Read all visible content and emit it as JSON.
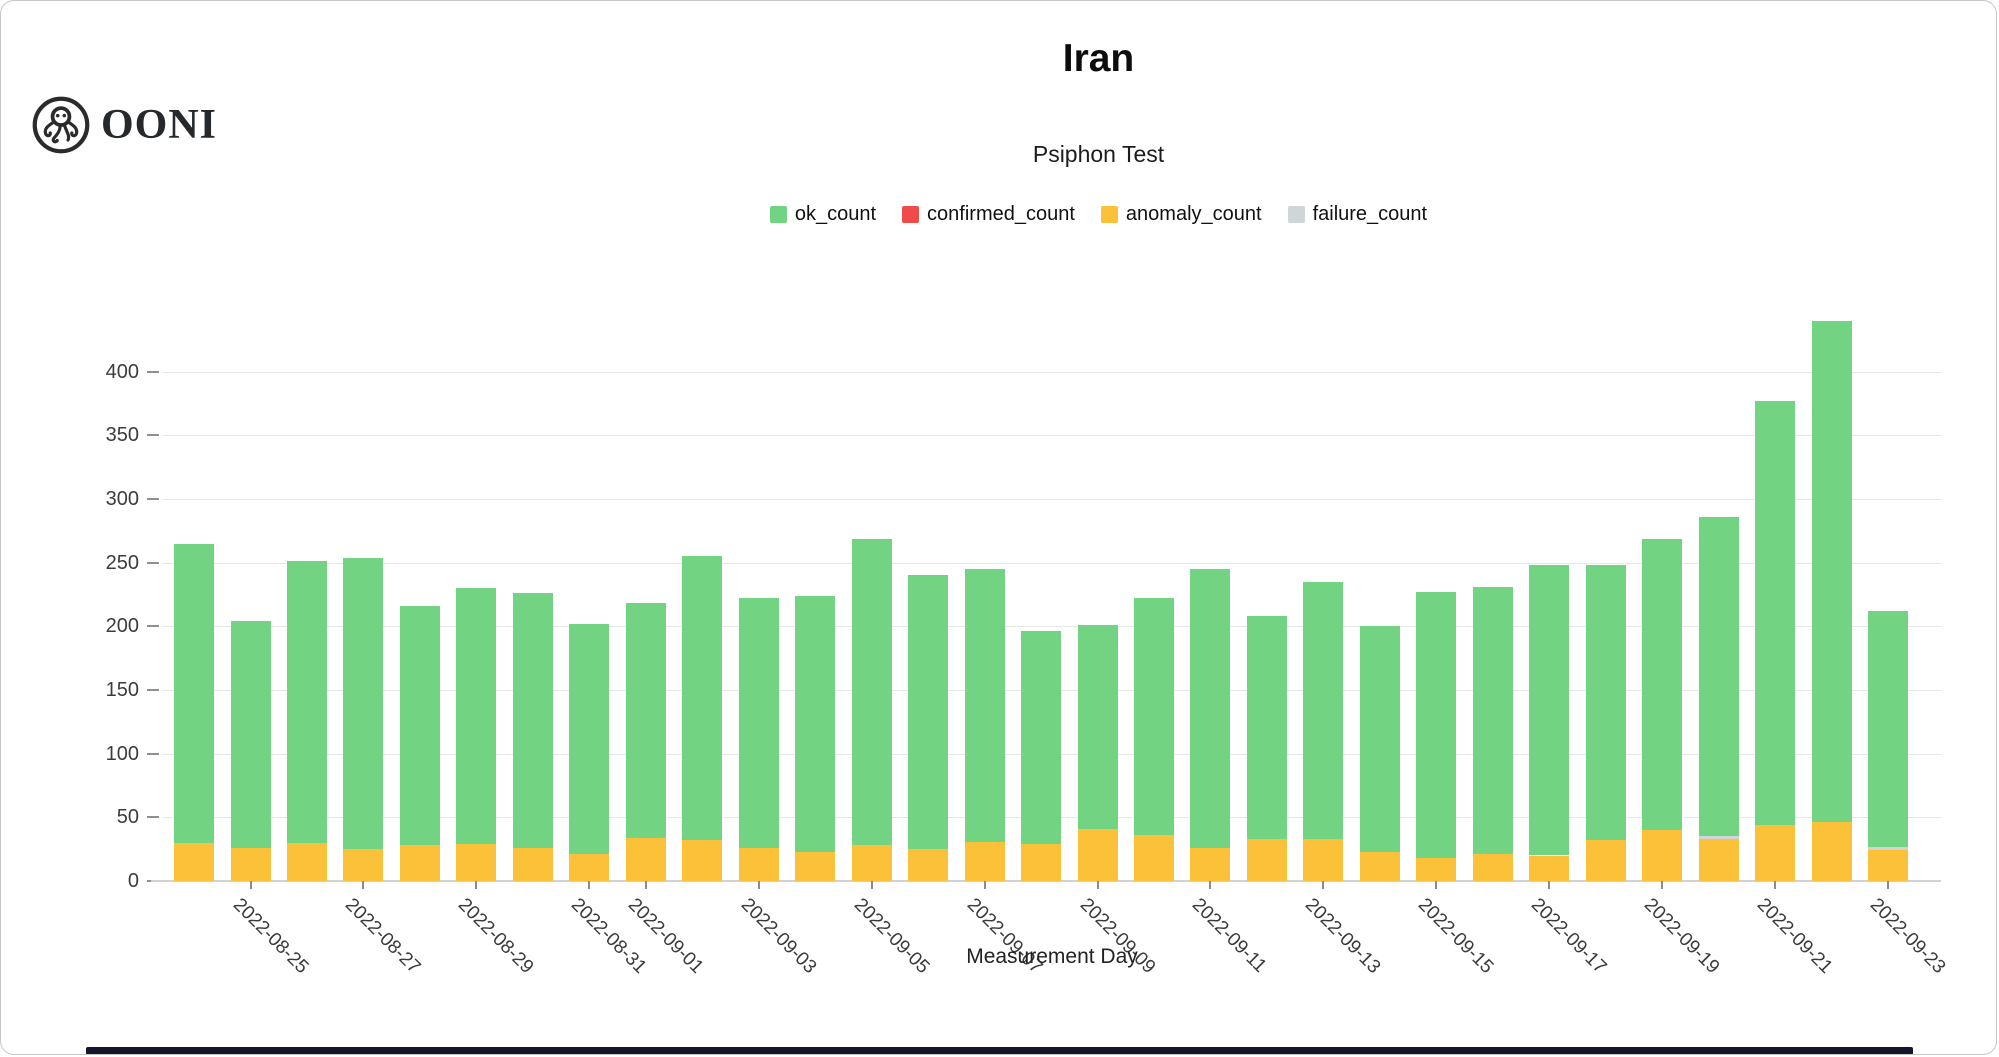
{
  "logo": {
    "text": "OONI"
  },
  "header": {
    "title": "Iran",
    "subtitle": "Psiphon Test"
  },
  "legend": {
    "items": [
      {
        "label": "ok_count",
        "color": "#72d383"
      },
      {
        "label": "confirmed_count",
        "color": "#f04b4b"
      },
      {
        "label": "anomaly_count",
        "color": "#fac139"
      },
      {
        "label": "failure_count",
        "color": "#d0d5da"
      }
    ]
  },
  "chart_data": {
    "type": "bar",
    "stacked": true,
    "title": "Iran",
    "subtitle": "Psiphon Test",
    "xlabel": "Measurement Day",
    "ylabel": "",
    "ylim": [
      0,
      448
    ],
    "y_ticks": [
      0,
      50,
      100,
      150,
      200,
      250,
      300,
      350,
      400
    ],
    "grid": true,
    "legend_position": "top",
    "categories": [
      "2022-08-24",
      "2022-08-25",
      "2022-08-26",
      "2022-08-27",
      "2022-08-28",
      "2022-08-29",
      "2022-08-30",
      "2022-08-31",
      "2022-09-01",
      "2022-09-02",
      "2022-09-03",
      "2022-09-04",
      "2022-09-05",
      "2022-09-06",
      "2022-09-07",
      "2022-09-08",
      "2022-09-09",
      "2022-09-10",
      "2022-09-11",
      "2022-09-12",
      "2022-09-13",
      "2022-09-14",
      "2022-09-15",
      "2022-09-16",
      "2022-09-17",
      "2022-09-18",
      "2022-09-19",
      "2022-09-20",
      "2022-09-21",
      "2022-09-22",
      "2022-09-23"
    ],
    "x_tick_labels": [
      "2022-08-25",
      "2022-08-27",
      "2022-08-29",
      "2022-08-31",
      "2022-09-01",
      "2022-09-03",
      "2022-09-05",
      "2022-09-07",
      "2022-09-09",
      "2022-09-11",
      "2022-09-13",
      "2022-09-15",
      "2022-09-17",
      "2022-09-19",
      "2022-09-21",
      "2022-09-23"
    ],
    "series": [
      {
        "name": "ok_count",
        "color": "#72d383",
        "values": [
          235,
          178,
          221,
          229,
          188,
          201,
          200,
          181,
          184,
          223,
          196,
          201,
          241,
          215,
          214,
          167,
          160,
          186,
          219,
          175,
          202,
          177,
          209,
          210,
          228,
          216,
          229,
          251,
          333,
          394,
          185
        ]
      },
      {
        "name": "confirmed_count",
        "color": "#f04b4b",
        "values": [
          0,
          0,
          0,
          0,
          0,
          0,
          0,
          0,
          0,
          0,
          0,
          0,
          0,
          0,
          0,
          0,
          0,
          0,
          0,
          0,
          0,
          0,
          0,
          0,
          0,
          0,
          0,
          0,
          0,
          0,
          0
        ]
      },
      {
        "name": "anomaly_count",
        "color": "#fac139",
        "values": [
          30,
          26,
          30,
          25,
          28,
          29,
          26,
          21,
          34,
          32,
          26,
          23,
          28,
          25,
          31,
          29,
          41,
          36,
          26,
          33,
          33,
          23,
          18,
          21,
          20,
          32,
          40,
          33,
          44,
          46,
          24
        ]
      },
      {
        "name": "failure_count",
        "color": "#d0d5da",
        "values": [
          0,
          0,
          0,
          0,
          0,
          0,
          0,
          0,
          0,
          0,
          0,
          0,
          0,
          0,
          0,
          0,
          0,
          0,
          0,
          0,
          0,
          0,
          0,
          0,
          0,
          0,
          0,
          2,
          0,
          0,
          3
        ]
      }
    ],
    "stack_order_bottom_to_top": [
      "anomaly_count",
      "confirmed_count",
      "failure_count",
      "ok_count"
    ]
  }
}
